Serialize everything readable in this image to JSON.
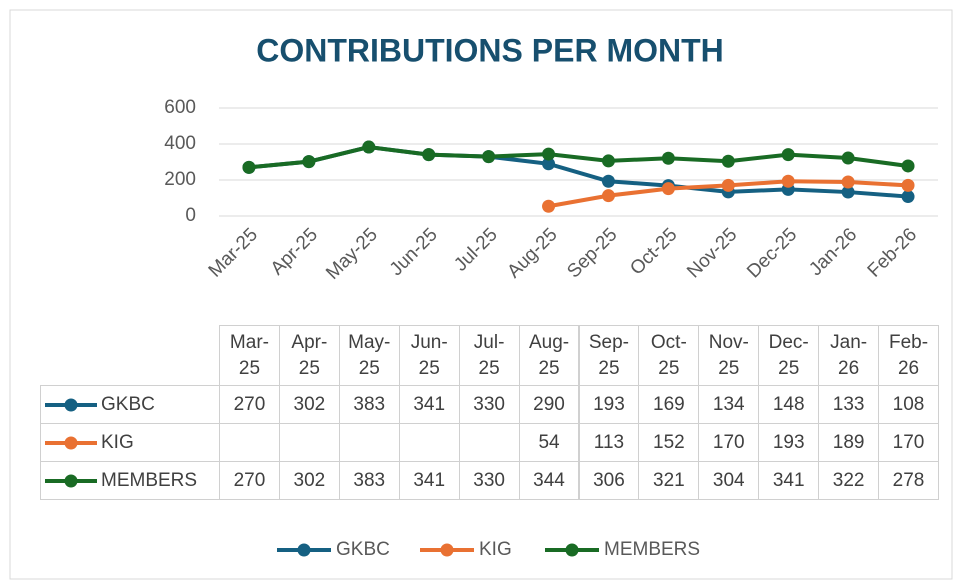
{
  "chart_data": {
    "type": "line",
    "title": "CONTRIBUTIONS PER MONTH",
    "categories": [
      "Mar-25",
      "Apr-25",
      "May-25",
      "Jun-25",
      "Jul-25",
      "Aug-25",
      "Sep-25",
      "Oct-25",
      "Nov-25",
      "Dec-25",
      "Jan-26",
      "Feb-26"
    ],
    "series": [
      {
        "name": "GKBC",
        "color": "#156082",
        "values": [
          270,
          302,
          383,
          341,
          330,
          290,
          193,
          169,
          134,
          148,
          133,
          108
        ]
      },
      {
        "name": "KIG",
        "color": "#e97132",
        "values": [
          null,
          null,
          null,
          null,
          null,
          54,
          113,
          152,
          170,
          193,
          189,
          170
        ]
      },
      {
        "name": "MEMBERS",
        "color": "#196b24",
        "values": [
          270,
          302,
          383,
          341,
          330,
          344,
          306,
          321,
          304,
          341,
          322,
          278
        ]
      }
    ],
    "ylim": [
      0,
      600
    ],
    "yticks": [
      0,
      200,
      400,
      600
    ],
    "grid": true,
    "legend": "bottom",
    "data_table": true
  }
}
